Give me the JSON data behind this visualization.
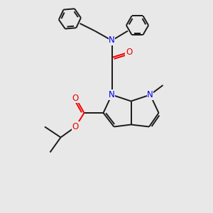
{
  "bg_color": "#e8e8e8",
  "bond_color": "#1a1a1a",
  "N_color": "#0000ee",
  "O_color": "#ee0000",
  "line_width": 1.4,
  "font_size": 8.5,
  "xlim": [
    0,
    10
  ],
  "ylim": [
    0,
    10
  ]
}
